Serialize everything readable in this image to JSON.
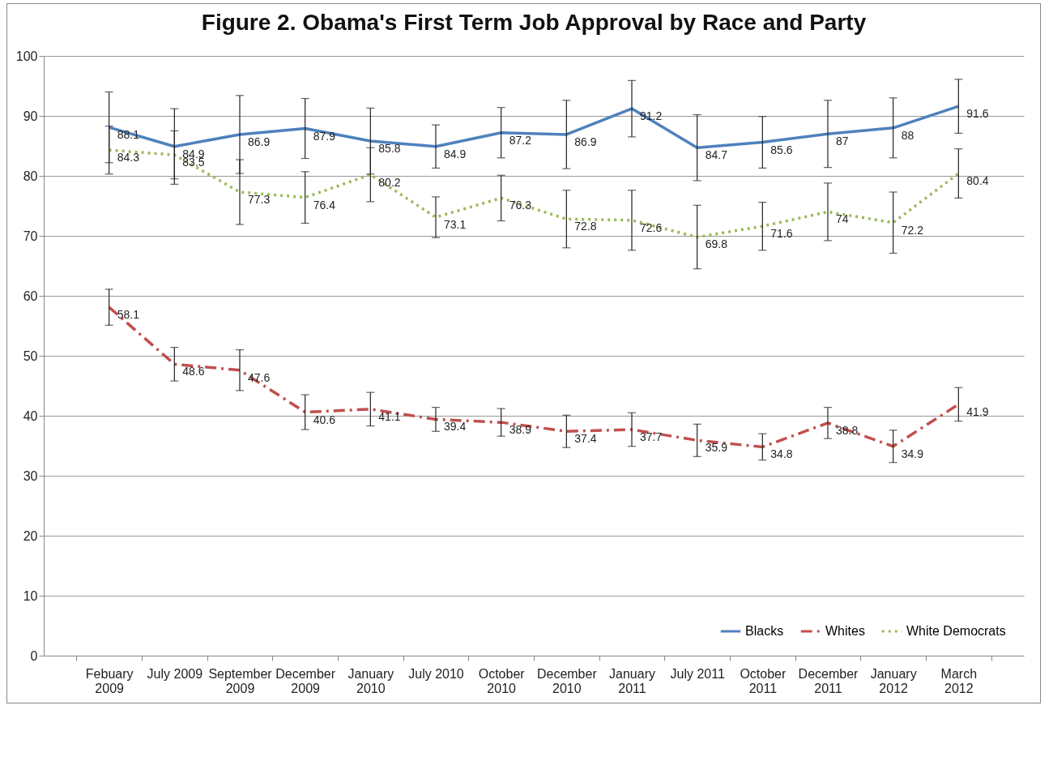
{
  "chart_data": {
    "type": "line",
    "title": "Figure 2. Obama's First Term Job Approval by Race and Party",
    "categories": [
      "Febuary 2009",
      "July 2009",
      "September 2009",
      "December 2009",
      "January 2010",
      "July 2010",
      "October 2010",
      "December 2010",
      "January 2011",
      "July 2011",
      "October 2011",
      "December 2011",
      "January 2012",
      "March 2012"
    ],
    "series": [
      {
        "name": "Blacks",
        "color": "#4f81bd",
        "line_style": "solid",
        "values": [
          88.1,
          84.9,
          86.9,
          87.9,
          85.8,
          84.9,
          87.2,
          86.9,
          91.2,
          84.7,
          85.6,
          87,
          88,
          91.6
        ],
        "errors": [
          5.9,
          6.3,
          6.5,
          5,
          5.5,
          3.6,
          4.2,
          5.7,
          4.7,
          5.5,
          4.3,
          5.6,
          5,
          4.5
        ]
      },
      {
        "name": "Whites",
        "color": "#c0504d",
        "line_style": "dashed",
        "values": [
          58.1,
          48.6,
          47.6,
          40.6,
          41.1,
          39.4,
          38.9,
          37.4,
          37.7,
          35.9,
          34.8,
          38.8,
          34.9,
          41.9
        ],
        "errors": [
          3,
          2.8,
          3.4,
          2.9,
          2.8,
          2,
          2.3,
          2.7,
          2.8,
          2.7,
          2.2,
          2.6,
          2.7,
          2.8
        ]
      },
      {
        "name": "White Democrats",
        "color": "#9bbb59",
        "line_style": "dotted",
        "values": [
          84.3,
          83.5,
          77.3,
          76.4,
          80.2,
          73.1,
          76.3,
          72.8,
          72.6,
          69.8,
          71.6,
          74,
          72.2,
          80.4
        ],
        "errors": [
          4,
          4,
          5.4,
          4.3,
          4.5,
          3.4,
          3.8,
          4.8,
          5,
          5.3,
          4,
          4.8,
          5.1,
          4.1
        ]
      }
    ],
    "ylim": [
      0,
      100
    ],
    "yticks": [
      0,
      10,
      20,
      30,
      40,
      50,
      60,
      70,
      80,
      90,
      100
    ],
    "grid": "y",
    "legend": "bottom right",
    "data_labels": true,
    "marker": "none"
  }
}
